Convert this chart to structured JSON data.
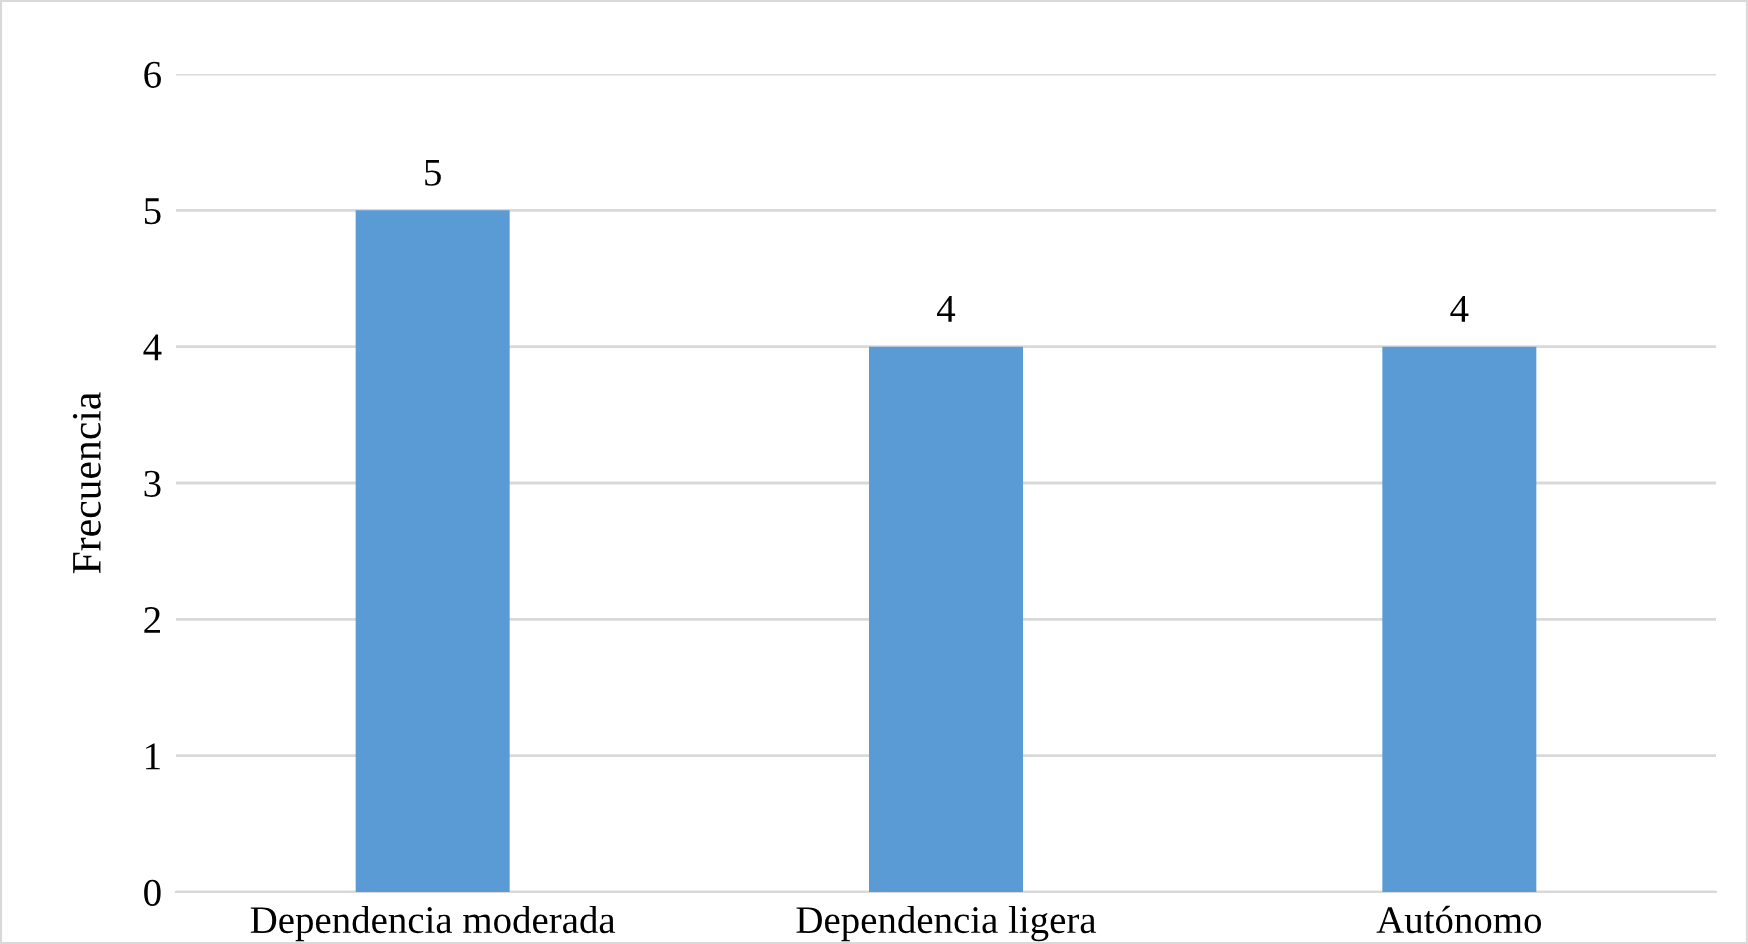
{
  "chart_data": {
    "type": "bar",
    "ylabel": "Frecuencia",
    "categories": [
      "Dependencia moderada",
      "Dependencia ligera",
      "Autónomo"
    ],
    "values": [
      5,
      4,
      4
    ],
    "color": "#5b9bd5",
    "ylim": [
      0,
      6
    ],
    "yticks": [
      0,
      1,
      2,
      3,
      4,
      5,
      6
    ],
    "grid": "y",
    "data_labels": true
  }
}
